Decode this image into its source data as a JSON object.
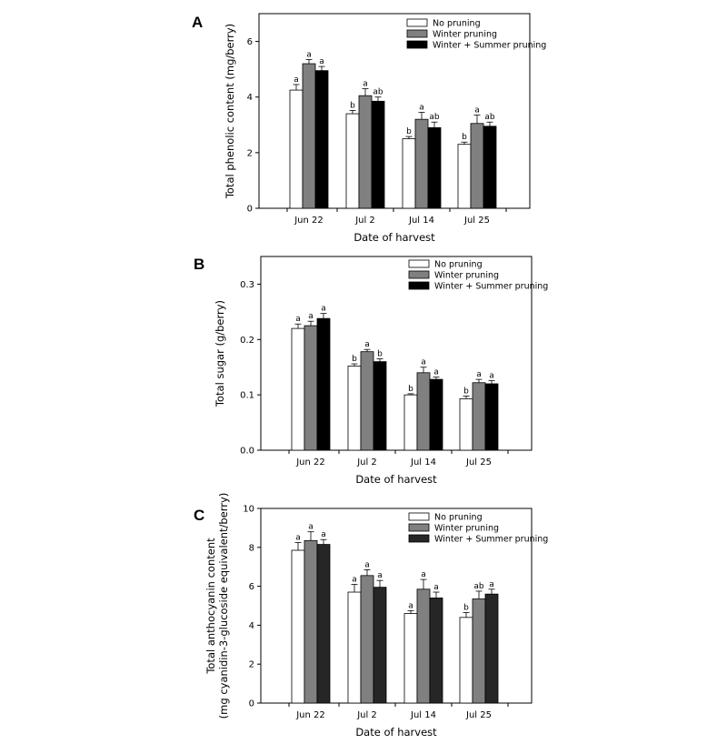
{
  "colors": {
    "no_pruning": "#ffffff",
    "winter_pruning": "#808080",
    "winter_summer_pruning_ab": "#000000",
    "winter_summer_pruning_c": "#262626"
  },
  "chart_data": [
    {
      "type": "bar",
      "panel": "A",
      "categories": [
        "Jun 22",
        "Jul 2",
        "Jul 14",
        "Jul 25"
      ],
      "xlabel": "Date of harvest",
      "ylabel": "Total phenolic content (mg/berry)",
      "ylim": [
        0,
        7
      ],
      "yticks": [
        0,
        2,
        4,
        6
      ],
      "ytick_labels": [
        "0",
        "2",
        "4",
        "6"
      ],
      "legend": "top-right",
      "grid": false,
      "series": [
        {
          "name": "No pruning",
          "values": [
            4.25,
            3.4,
            2.5,
            2.3
          ],
          "errors": [
            0.2,
            0.12,
            0.08,
            0.08
          ],
          "letters": [
            "a",
            "b",
            "b",
            "b"
          ]
        },
        {
          "name": "Winter pruning",
          "values": [
            5.2,
            4.05,
            3.2,
            3.05
          ],
          "errors": [
            0.15,
            0.25,
            0.25,
            0.3
          ],
          "letters": [
            "a",
            "a",
            "a",
            "a"
          ]
        },
        {
          "name": "Winter + Summer pruning",
          "values": [
            4.95,
            3.85,
            2.9,
            2.95
          ],
          "errors": [
            0.15,
            0.15,
            0.2,
            0.15
          ],
          "letters": [
            "a",
            "ab",
            "ab",
            "ab"
          ]
        }
      ]
    },
    {
      "type": "bar",
      "panel": "B",
      "categories": [
        "Jun 22",
        "Jul 2",
        "Jul 14",
        "Jul 25"
      ],
      "xlabel": "Date of harvest",
      "ylabel": "Total sugar (g/berry)",
      "ylim": [
        0,
        0.35
      ],
      "yticks": [
        0,
        0.1,
        0.2,
        0.3
      ],
      "ytick_labels": [
        "0.0",
        "0.1",
        "0.2",
        "0.3"
      ],
      "legend": "top-right",
      "grid": false,
      "series": [
        {
          "name": "No pruning",
          "values": [
            0.22,
            0.152,
            0.1,
            0.093
          ],
          "errors": [
            0.008,
            0.004,
            0.002,
            0.005
          ],
          "letters": [
            "a",
            "b",
            "b",
            "b"
          ]
        },
        {
          "name": "Winter pruning",
          "values": [
            0.225,
            0.178,
            0.14,
            0.122
          ],
          "errors": [
            0.008,
            0.004,
            0.01,
            0.006
          ],
          "letters": [
            "a",
            "a",
            "a",
            "a"
          ]
        },
        {
          "name": "Winter + Summer pruning",
          "values": [
            0.238,
            0.16,
            0.128,
            0.12
          ],
          "errors": [
            0.009,
            0.005,
            0.004,
            0.006
          ],
          "letters": [
            "a",
            "b",
            "a",
            "a"
          ]
        }
      ]
    },
    {
      "type": "bar",
      "panel": "C",
      "categories": [
        "Jun 22",
        "Jul 2",
        "Jul 14",
        "Jul 25"
      ],
      "xlabel": "Date of harvest",
      "ylabel": "Total anthocyanin content",
      "ylabel2": "(mg cyanidin-3-glucoside equivalent/berry)",
      "ylim": [
        0,
        10
      ],
      "yticks": [
        0,
        2,
        4,
        6,
        8,
        10
      ],
      "ytick_labels": [
        "0",
        "2",
        "4",
        "6",
        "8",
        "10"
      ],
      "legend": "top-right",
      "grid": false,
      "series": [
        {
          "name": "No pruning",
          "values": [
            7.85,
            5.7,
            4.6,
            4.4
          ],
          "errors": [
            0.4,
            0.4,
            0.15,
            0.25
          ],
          "letters": [
            "a",
            "a",
            "a",
            "b"
          ]
        },
        {
          "name": "Winter pruning",
          "values": [
            8.35,
            6.55,
            5.85,
            5.35
          ],
          "errors": [
            0.45,
            0.3,
            0.5,
            0.4
          ],
          "letters": [
            "a",
            "a",
            "a",
            "ab"
          ]
        },
        {
          "name": "Winter + Summer pruning",
          "values": [
            8.15,
            5.95,
            5.4,
            5.6
          ],
          "errors": [
            0.25,
            0.35,
            0.3,
            0.25
          ],
          "letters": [
            "a",
            "a",
            "a",
            "a"
          ]
        }
      ]
    }
  ]
}
